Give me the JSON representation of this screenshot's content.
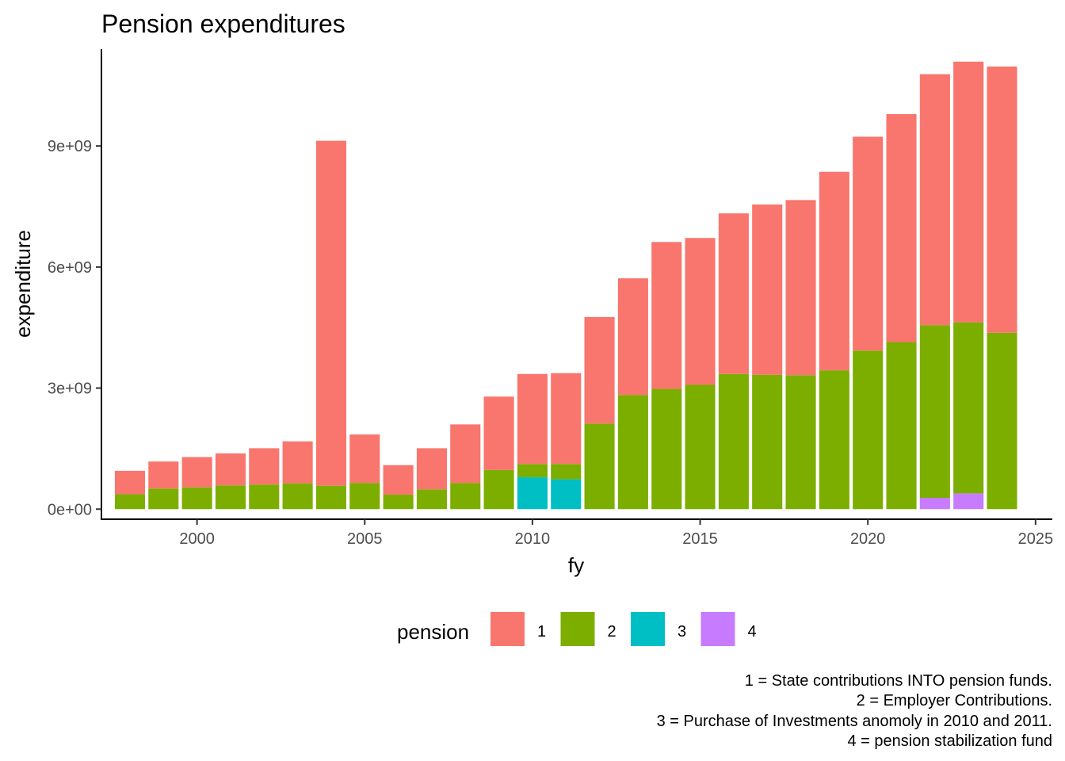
{
  "chart_data": {
    "type": "bar",
    "stacked": true,
    "title": "Pension expenditures",
    "xlabel": "fy",
    "ylabel": "expenditure",
    "x": [
      1998,
      1999,
      2000,
      2001,
      2002,
      2003,
      2004,
      2005,
      2006,
      2007,
      2008,
      2009,
      2010,
      2011,
      2012,
      2013,
      2014,
      2015,
      2016,
      2017,
      2018,
      2019,
      2020,
      2021,
      2022,
      2023,
      2024
    ],
    "xlim": [
      1997.15,
      2025.5
    ],
    "ylim": [
      -250000000,
      11400000000
    ],
    "x_ticks": [
      2000,
      2005,
      2010,
      2015,
      2020,
      2025
    ],
    "x_tick_labels": [
      "2000",
      "2005",
      "2010",
      "2015",
      "2020",
      "2025"
    ],
    "y_ticks": [
      0,
      3000000000,
      6000000000,
      9000000000
    ],
    "y_tick_labels": [
      "0e+00",
      "3e+09",
      "6e+09",
      "9e+09"
    ],
    "grid": false,
    "legend_position": "bottom",
    "legend_title": "pension",
    "stack_order": [
      "4",
      "3",
      "2",
      "1"
    ],
    "series": [
      {
        "name": "1",
        "color": "#F8766D",
        "values": [
          580000000,
          670000000,
          750000000,
          790000000,
          900000000,
          1040000000,
          8550000000,
          1200000000,
          730000000,
          1020000000,
          1450000000,
          1820000000,
          2230000000,
          2250000000,
          2640000000,
          2890000000,
          3640000000,
          3640000000,
          3980000000,
          4220000000,
          4340000000,
          4920000000,
          5300000000,
          5650000000,
          6220000000,
          6460000000,
          6600000000
        ]
      },
      {
        "name": "2",
        "color": "#7CAE00",
        "values": [
          370000000,
          510000000,
          540000000,
          590000000,
          610000000,
          640000000,
          580000000,
          650000000,
          360000000,
          490000000,
          650000000,
          970000000,
          330000000,
          380000000,
          2120000000,
          2830000000,
          2980000000,
          3080000000,
          3350000000,
          3330000000,
          3320000000,
          3440000000,
          3930000000,
          4140000000,
          4280000000,
          4240000000,
          4370000000
        ]
      },
      {
        "name": "3",
        "color": "#00BFC4",
        "values": [
          0,
          0,
          0,
          0,
          0,
          0,
          0,
          0,
          0,
          0,
          0,
          0,
          790000000,
          740000000,
          0,
          0,
          0,
          0,
          0,
          0,
          0,
          0,
          0,
          0,
          0,
          0,
          0
        ]
      },
      {
        "name": "4",
        "color": "#C77CFF",
        "values": [
          0,
          0,
          0,
          0,
          0,
          0,
          0,
          0,
          0,
          0,
          0,
          0,
          0,
          0,
          0,
          0,
          0,
          0,
          0,
          0,
          0,
          0,
          0,
          0,
          280000000,
          390000000,
          0
        ]
      }
    ],
    "caption_lines": [
      "1 = State contributions INTO pension funds.",
      "2 = Employer Contributions.",
      "3 = Purchase of Investments anomoly in 2010 and 2011.",
      "4 = pension stabilization fund"
    ]
  }
}
